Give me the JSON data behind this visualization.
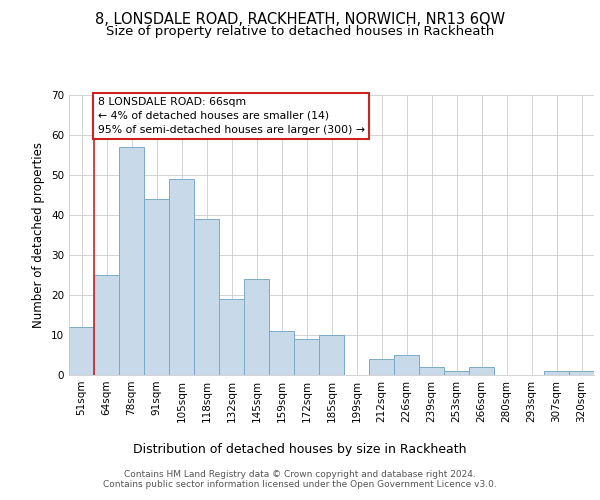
{
  "title1": "8, LONSDALE ROAD, RACKHEATH, NORWICH, NR13 6QW",
  "title2": "Size of property relative to detached houses in Rackheath",
  "xlabel": "Distribution of detached houses by size in Rackheath",
  "ylabel": "Number of detached properties",
  "bar_color": "#c8daea",
  "bar_edge_color": "#7aaac8",
  "categories": [
    "51sqm",
    "64sqm",
    "78sqm",
    "91sqm",
    "105sqm",
    "118sqm",
    "132sqm",
    "145sqm",
    "159sqm",
    "172sqm",
    "185sqm",
    "199sqm",
    "212sqm",
    "226sqm",
    "239sqm",
    "253sqm",
    "266sqm",
    "280sqm",
    "293sqm",
    "307sqm",
    "320sqm"
  ],
  "values": [
    12,
    25,
    57,
    44,
    49,
    39,
    19,
    24,
    11,
    9,
    10,
    0,
    4,
    5,
    2,
    1,
    2,
    0,
    0,
    1,
    1
  ],
  "ylim": [
    0,
    70
  ],
  "yticks": [
    0,
    10,
    20,
    30,
    40,
    50,
    60,
    70
  ],
  "annotation_text": "8 LONSDALE ROAD: 66sqm\n← 4% of detached houses are smaller (14)\n95% of semi-detached houses are larger (300) →",
  "annotation_box_color": "#ffffff",
  "annotation_box_edge": "#cc2222",
  "vline_color": "#cc2222",
  "footer1": "Contains HM Land Registry data © Crown copyright and database right 2024.",
  "footer2": "Contains public sector information licensed under the Open Government Licence v3.0.",
  "background_color": "#ffffff",
  "plot_bg_color": "#ffffff",
  "title_fontsize": 10.5,
  "subtitle_fontsize": 9.5,
  "tick_fontsize": 7.5,
  "ylabel_fontsize": 8.5,
  "xlabel_fontsize": 9,
  "footer_fontsize": 6.5
}
